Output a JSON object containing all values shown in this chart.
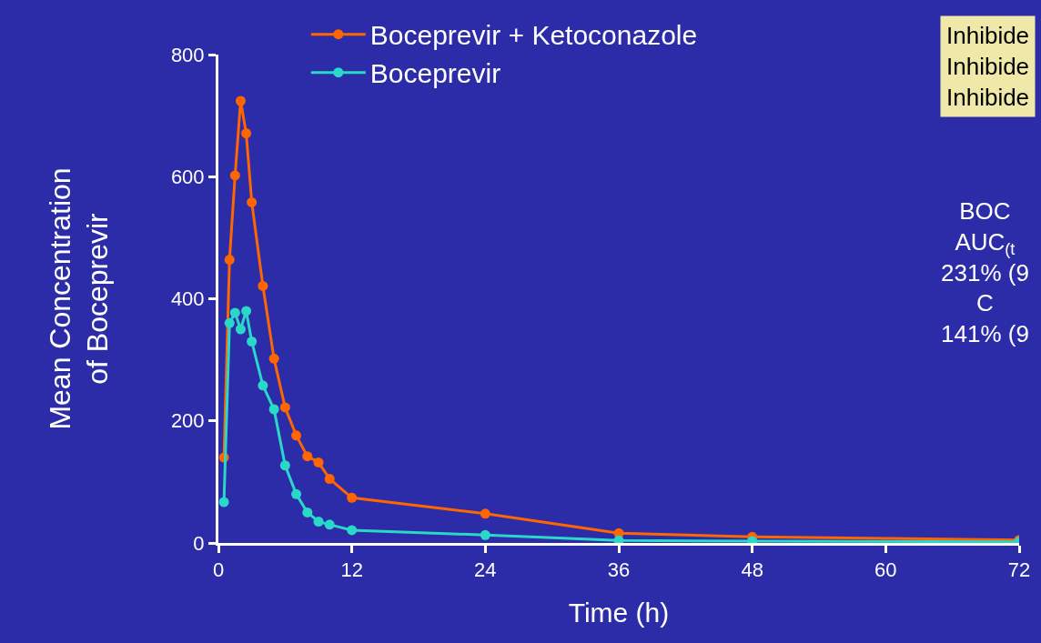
{
  "chart_data": {
    "type": "line",
    "xlabel": "Time (h)",
    "ylabel": "Mean Concentration\nof Boceprevir",
    "x": [
      0.5,
      1,
      1.5,
      2,
      2.5,
      3,
      4,
      5,
      6,
      7,
      8,
      9,
      10,
      12,
      24,
      36,
      48,
      72
    ],
    "series": [
      {
        "name": "Boceprevir + Ketoconazole",
        "color": "#ff6600",
        "values": [
          140,
          464,
          602,
          724,
          671,
          558,
          421,
          302,
          222,
          176,
          142,
          132,
          105,
          74,
          48,
          16,
          10,
          5
        ]
      },
      {
        "name": "Boceprevir",
        "color": "#2ad8c8",
        "values": [
          67,
          360,
          377,
          350,
          380,
          330,
          258,
          219,
          127,
          80,
          50,
          35,
          30,
          21,
          13,
          4,
          3,
          2
        ]
      }
    ],
    "xlim": [
      0,
      72
    ],
    "xticks": [
      0,
      12,
      24,
      36,
      48,
      60,
      72
    ],
    "ylim": [
      0,
      800
    ],
    "yticks": [
      0,
      200,
      400,
      600,
      800
    ],
    "grid": false,
    "legend": "top",
    "marker": "circle",
    "line_style": "solid",
    "annotations": [
      "Inhibide\nInhibide\nInhibide",
      "BOC\nAUC$_{(t}$\n231% (9\nC\n141% (9"
    ]
  }
}
